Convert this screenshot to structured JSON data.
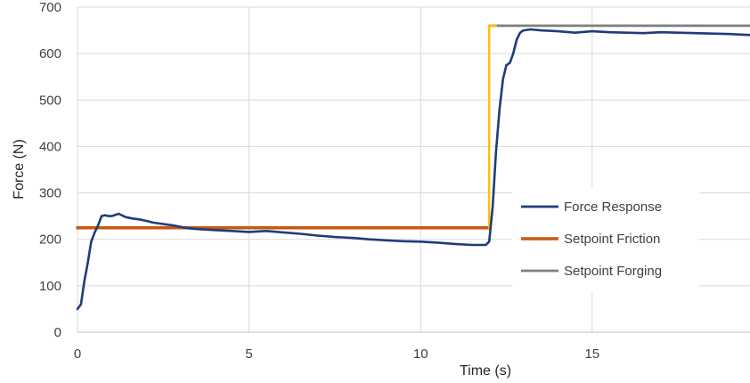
{
  "chart_data": {
    "type": "line",
    "title": "",
    "xlabel": "Time (s)",
    "ylabel": "Force (N)",
    "xlim": [
      0,
      19.6
    ],
    "ylim": [
      0,
      700
    ],
    "xticks": [
      0,
      5,
      10,
      15
    ],
    "yticks": [
      0,
      100,
      200,
      300,
      400,
      500,
      600,
      700
    ],
    "grid": true,
    "legend_position": "right",
    "series": [
      {
        "name": "Force Response",
        "color": "#1f3b7a",
        "x": [
          0.0,
          0.1,
          0.2,
          0.3,
          0.4,
          0.5,
          0.6,
          0.7,
          0.8,
          0.9,
          1.0,
          1.2,
          1.4,
          1.6,
          1.8,
          2.0,
          2.2,
          2.4,
          2.6,
          2.8,
          3.0,
          3.2,
          3.5,
          4.0,
          4.5,
          5.0,
          5.5,
          6.0,
          6.5,
          7.0,
          7.5,
          8.0,
          8.5,
          9.0,
          9.5,
          10.0,
          10.5,
          11.0,
          11.5,
          11.9,
          12.0,
          12.1,
          12.2,
          12.3,
          12.4,
          12.5,
          12.6,
          12.7,
          12.8,
          12.9,
          13.0,
          13.2,
          13.5,
          14.0,
          14.5,
          15.0,
          15.5,
          16.0,
          16.5,
          17.0,
          17.5,
          18.0,
          18.5,
          19.0,
          19.6
        ],
        "y": [
          50,
          60,
          110,
          150,
          195,
          215,
          230,
          250,
          252,
          250,
          250,
          255,
          248,
          245,
          243,
          240,
          236,
          234,
          232,
          230,
          227,
          224,
          222,
          220,
          218,
          216,
          218,
          215,
          212,
          208,
          205,
          203,
          200,
          198,
          196,
          195,
          193,
          190,
          188,
          188,
          195,
          270,
          390,
          480,
          545,
          575,
          580,
          600,
          630,
          645,
          650,
          652,
          650,
          648,
          645,
          648,
          646,
          645,
          644,
          646,
          645,
          644,
          643,
          642,
          640
        ]
      },
      {
        "name": "Setpoint Friction",
        "color": "#c55a11",
        "x": [
          0,
          12.0
        ],
        "y": [
          225,
          225
        ]
      },
      {
        "name": "Setpoint Forging",
        "color": "#7f7f7f",
        "x": [
          12.0,
          19.6
        ],
        "y": [
          660,
          660
        ]
      },
      {
        "name": "",
        "color": "#ffc000",
        "x": [
          12.0,
          12.0,
          12.2
        ],
        "y": [
          225,
          660,
          660
        ]
      }
    ]
  }
}
